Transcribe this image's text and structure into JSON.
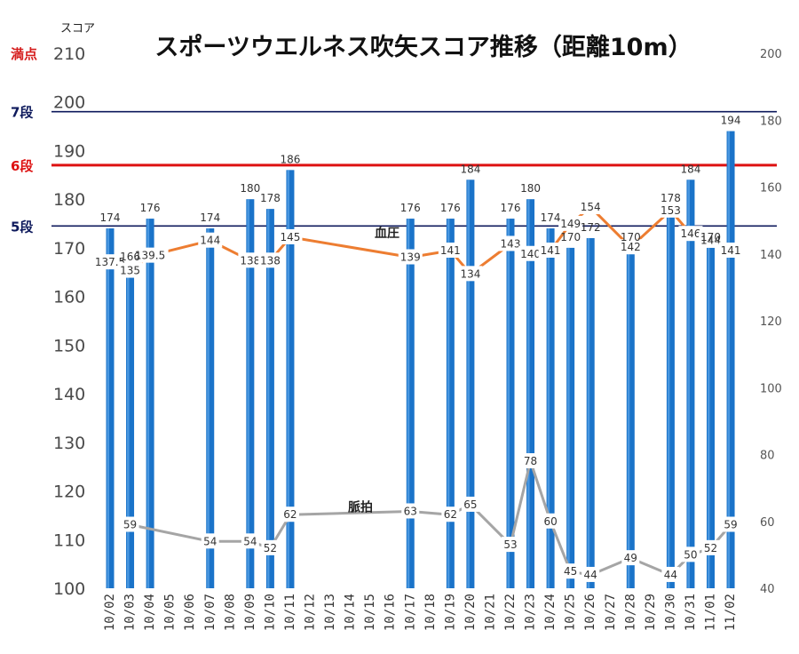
{
  "chart_data": {
    "type": "bar",
    "title": "スポーツウエルネス吹矢スコア推移（距離10m）",
    "ylabel": "スコア",
    "ylim": [
      100,
      210
    ],
    "y2lim": [
      40,
      200
    ],
    "yticks": [
      100,
      110,
      120,
      130,
      140,
      150,
      160,
      170,
      180,
      190,
      200,
      210
    ],
    "y2ticks": [
      40,
      60,
      80,
      100,
      120,
      140,
      160,
      180,
      200
    ],
    "grid": false,
    "categories": [
      "10/02",
      "10/03",
      "10/04",
      "10/05",
      "10/06",
      "10/07",
      "10/08",
      "10/09",
      "10/10",
      "10/11",
      "10/12",
      "10/13",
      "10/14",
      "10/15",
      "10/16",
      "10/17",
      "10/18",
      "10/19",
      "10/20",
      "10/21",
      "10/22",
      "10/23",
      "10/24",
      "10/25",
      "10/26",
      "10/27",
      "10/28",
      "10/29",
      "10/30",
      "10/31",
      "11/01",
      "11/02"
    ],
    "series": [
      {
        "name": "",
        "type": "bar",
        "axis": "left",
        "color": "#1a73c9",
        "values": [
          174,
          166,
          176,
          null,
          null,
          174,
          null,
          180,
          178,
          186,
          null,
          null,
          null,
          null,
          null,
          176,
          null,
          176,
          184,
          null,
          176,
          180,
          174,
          170,
          172,
          null,
          170,
          null,
          178,
          184,
          170,
          194
        ],
        "labels": [
          "174",
          "166",
          "176",
          "",
          "",
          "174",
          "",
          "180",
          "178",
          "186",
          "",
          "",
          "",
          "",
          "",
          "176",
          "",
          "176",
          "184",
          "",
          "176",
          "180",
          "174",
          "170",
          "172",
          "",
          "170",
          "",
          "178",
          "184",
          "170",
          "194"
        ]
      },
      {
        "name": "血圧",
        "type": "line",
        "axis": "right",
        "color": "#ed7d31",
        "values": [
          137.5,
          135,
          139.5,
          null,
          null,
          144,
          null,
          138,
          138,
          145,
          null,
          null,
          null,
          null,
          null,
          139,
          null,
          141,
          134,
          null,
          143,
          140,
          141,
          149,
          154,
          null,
          142,
          null,
          153,
          146,
          144,
          141
        ],
        "labels": [
          "137.5",
          "135",
          "139.5",
          "",
          "",
          "144",
          "",
          "138",
          "138",
          "145",
          "",
          "",
          "",
          "",
          "",
          "139",
          "",
          "141",
          "134",
          "",
          "143",
          "140",
          "141",
          "149",
          "154",
          "",
          "142",
          "",
          "153",
          "146",
          "144",
          "141"
        ]
      },
      {
        "name": "脈拍",
        "type": "line",
        "axis": "right",
        "color": "#a5a5a5",
        "values": [
          null,
          59,
          null,
          null,
          null,
          54,
          null,
          54,
          52,
          62,
          null,
          null,
          null,
          null,
          null,
          63,
          null,
          62,
          65,
          null,
          53,
          78,
          60,
          45,
          44,
          null,
          49,
          null,
          44,
          50,
          52,
          59
        ],
        "labels": [
          "",
          "59",
          "",
          "",
          "",
          "54",
          "",
          "54",
          "52",
          "62",
          "",
          "",
          "",
          "",
          "",
          "63",
          "",
          "62",
          "65",
          "",
          "53",
          "78",
          "60",
          "45",
          "44",
          "",
          "49",
          "",
          "44",
          "50",
          "52",
          "59"
        ]
      }
    ],
    "reference_lines": [
      {
        "label": "満点",
        "value": 210,
        "color": "#d61f1f"
      },
      {
        "label": "7段",
        "value": 198,
        "color": "#0e1a5c"
      },
      {
        "label": "6段",
        "value": 187,
        "color": "#dd1111"
      },
      {
        "label": "5段",
        "value": 174.5,
        "color": "#0e1a5c"
      }
    ]
  }
}
